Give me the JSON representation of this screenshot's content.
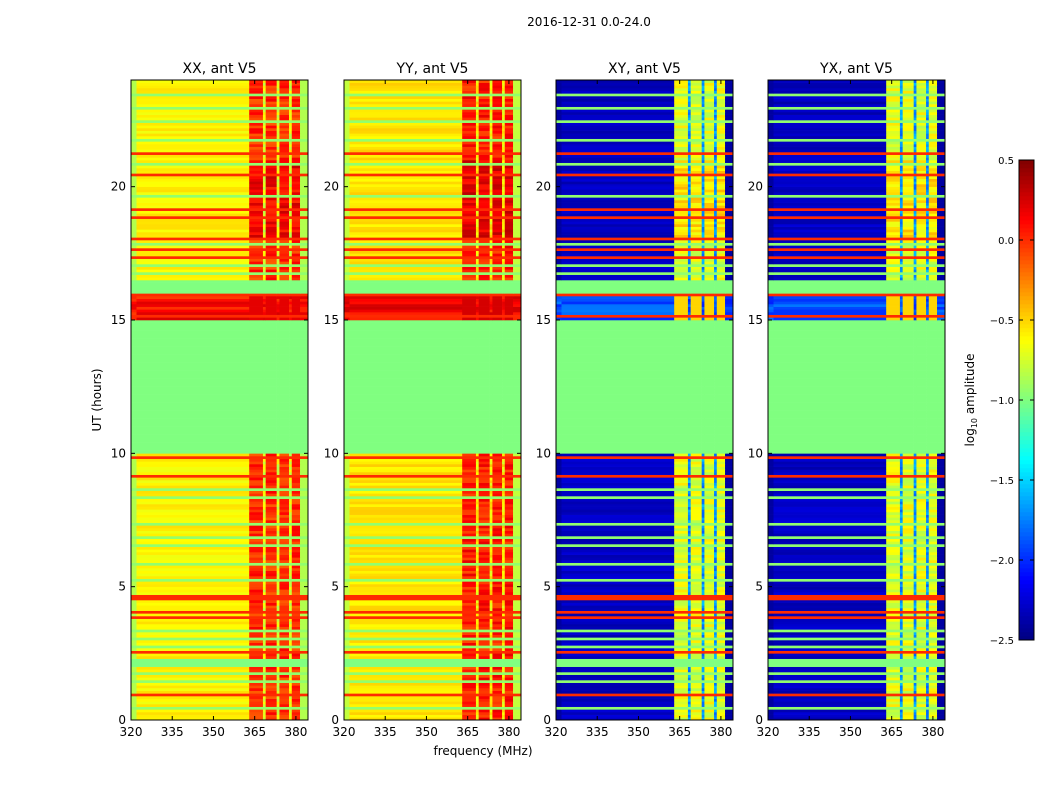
{
  "chart_data": {
    "type": "heatmap",
    "title": "2016-12-31 0.0-24.0",
    "xlabel": "frequency (MHz)",
    "ylabel": "UT (hours)",
    "xlim": [
      320,
      384.4
    ],
    "ylim": [
      0,
      24
    ],
    "xticks": [
      320,
      335,
      350,
      365,
      380
    ],
    "yticks": [
      0,
      5,
      10,
      15,
      20
    ],
    "colorbar": {
      "label_main": "log",
      "label_sub": "10",
      "label_rest": " amplitude",
      "range": [
        -2.5,
        0.5
      ],
      "ticks": [
        "0.5",
        "0.0",
        "−0.5",
        "−1.0",
        "−1.5",
        "−2.0",
        "−2.5"
      ],
      "tick_values": [
        0.5,
        0.0,
        -0.5,
        -1.0,
        -1.5,
        -2.0,
        -2.5
      ],
      "colormap": "jet"
    },
    "panels": [
      {
        "title": "XX, ant V5",
        "base": -0.6,
        "edge": -0.85,
        "band": 0.0,
        "band_gap": -0.7,
        "fill_1516": 0.1
      },
      {
        "title": "YY, ant V5",
        "base": -0.55,
        "edge": -0.8,
        "band": 0.05,
        "band_gap": -0.6,
        "fill_1516": 0.15
      },
      {
        "title": "XY, ant V5",
        "base": -2.3,
        "edge": -2.4,
        "band": -0.7,
        "band_gap": -1.7,
        "fill_1516": -1.9
      },
      {
        "title": "YX, ant V5",
        "base": -2.3,
        "edge": -2.4,
        "band": -0.7,
        "band_gap": -1.7,
        "fill_1516": -1.9
      }
    ],
    "band_channels_mhz": [
      [
        363,
        368
      ],
      [
        369,
        373
      ],
      [
        374,
        377.5
      ],
      [
        378.5,
        381.5
      ]
    ],
    "flagged_hours": [
      [
        10.0,
        15.0
      ],
      [
        16.0,
        16.5
      ],
      [
        2.0,
        2.3
      ]
    ],
    "flag_value": -1.0,
    "red_line_hours": [
      0.9,
      2.3,
      2.6,
      3.9,
      4.1,
      4.6,
      9.1,
      9.8,
      15.1,
      15.9,
      17.3,
      17.6,
      18.0,
      18.8,
      19.2,
      20.5,
      21.3
    ],
    "green_line_hours": [
      0.5,
      1.2,
      1.5,
      1.8,
      2.8,
      3.1,
      3.4,
      5.2,
      5.8,
      6.5,
      6.8,
      7.3,
      8.3,
      8.6,
      16.7,
      17.0,
      17.8,
      19.7,
      20.9,
      21.8,
      22.5,
      23.0,
      23.5
    ],
    "red_line_value": 0.0,
    "green_line_value": -0.95
  }
}
